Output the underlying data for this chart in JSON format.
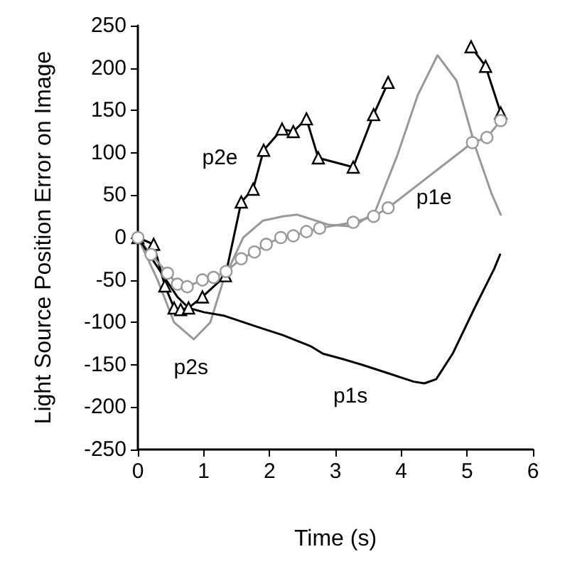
{
  "chart_data": {
    "type": "line",
    "xlabel": "Time (s)",
    "ylabel": "Light Source Position Error on Image",
    "xlim": [
      0,
      6
    ],
    "ylim": [
      -250,
      250
    ],
    "xticks": [
      0,
      1,
      2,
      3,
      4,
      5,
      6
    ],
    "yticks": [
      -250,
      -200,
      -150,
      -100,
      -50,
      0,
      50,
      100,
      150,
      200,
      250
    ],
    "grid": false,
    "series": [
      {
        "name": "p2e",
        "color": "#000000",
        "marker": "triangle",
        "x": [
          0,
          0.24,
          0.41,
          0.55,
          0.65,
          0.77,
          0.98,
          1.33,
          1.57,
          1.75,
          1.91,
          2.19,
          2.36,
          2.56,
          2.74,
          3.27,
          3.58,
          3.8,
          null,
          5.06,
          5.28,
          5.51
        ],
        "values": [
          0,
          -8,
          -57,
          -83,
          -85,
          -83,
          -70,
          -45,
          42,
          57,
          103,
          128,
          125,
          140,
          94,
          83,
          145,
          183,
          null,
          225,
          202,
          147
        ]
      },
      {
        "name": "p1e",
        "color": "#999999",
        "marker": "circle",
        "x": [
          0,
          0.2,
          0.45,
          0.6,
          0.75,
          0.98,
          1.15,
          1.34,
          1.57,
          1.77,
          1.95,
          2.17,
          2.36,
          2.56,
          2.76,
          3.27,
          3.58,
          3.8,
          5.08,
          5.3,
          5.51
        ],
        "values": [
          0,
          -20,
          -42,
          -55,
          -58,
          -50,
          -47,
          -40,
          -25,
          -17,
          -8,
          0,
          2,
          7,
          11,
          18,
          25,
          35,
          112,
          118,
          138
        ]
      },
      {
        "name": "p2s",
        "color": "#999999",
        "marker": "none",
        "x": [
          0,
          0.3,
          0.55,
          0.85,
          1.1,
          1.3,
          1.6,
          1.9,
          2.2,
          2.42,
          2.62,
          2.9,
          3.27,
          3.6,
          3.94,
          4.25,
          4.55,
          4.84,
          5.12,
          5.37,
          5.51
        ],
        "values": [
          0,
          -50,
          -100,
          -120,
          -100,
          -50,
          0,
          20,
          25,
          27,
          22,
          15,
          13,
          30,
          97,
          168,
          215,
          185,
          108,
          52,
          27
        ]
      },
      {
        "name": "p1s",
        "color": "#000000",
        "marker": "none",
        "x": [
          0,
          0.3,
          0.6,
          0.77,
          1.0,
          1.3,
          1.8,
          2.2,
          2.62,
          2.81,
          3.1,
          3.4,
          3.8,
          4.19,
          4.35,
          4.53,
          4.78,
          5.12,
          5.41,
          5.5
        ],
        "values": [
          0,
          -35,
          -70,
          -83,
          -88,
          -92,
          -105,
          -115,
          -128,
          -137,
          -143,
          -150,
          -160,
          -170,
          -172,
          -167,
          -137,
          -82,
          -37,
          -20
        ]
      }
    ]
  }
}
